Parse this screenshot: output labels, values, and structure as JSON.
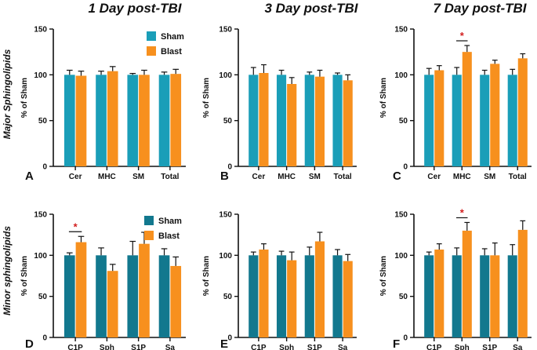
{
  "figure": {
    "column_titles": [
      "1 Day post-TBI",
      "3 Day post-TBI",
      "7 Day post-TBI"
    ],
    "row_titles": [
      "Major Sphingolipids",
      "Minor sphingolipids"
    ],
    "colors": {
      "sham_major": "#1a9eb8",
      "sham_minor": "#12788e",
      "blast": "#f7901e",
      "star": "#d21f1f",
      "axis": "#111111"
    }
  },
  "chart_data": [
    {
      "panel": "A",
      "type": "bar",
      "title": "",
      "ylabel": "% of Sham",
      "ylim": [
        0,
        150
      ],
      "yticks": [
        0,
        50,
        100,
        150
      ],
      "categories": [
        "Cer",
        "MHC",
        "SM",
        "Total"
      ],
      "series": [
        {
          "name": "Sham",
          "values": [
            100,
            100,
            100,
            100
          ],
          "errors": [
            5,
            4,
            1.5,
            3
          ]
        },
        {
          "name": "Blast",
          "values": [
            99,
            104,
            100,
            101
          ],
          "errors": [
            5,
            5,
            5,
            5
          ]
        }
      ],
      "legend": [
        "Sham",
        "Blast"
      ],
      "legend_position": "top-right",
      "significance": []
    },
    {
      "panel": "B",
      "type": "bar",
      "title": "",
      "ylabel": "% of Sham",
      "ylim": [
        0,
        150
      ],
      "yticks": [
        0,
        50,
        100,
        150
      ],
      "categories": [
        "Cer",
        "MHC",
        "SM",
        "Total"
      ],
      "series": [
        {
          "name": "Sham",
          "values": [
            100,
            100,
            100,
            100
          ],
          "errors": [
            8,
            5,
            3,
            2
          ]
        },
        {
          "name": "Blast",
          "values": [
            102,
            90,
            98,
            94
          ],
          "errors": [
            9,
            7,
            7,
            6
          ]
        }
      ],
      "legend": [],
      "significance": []
    },
    {
      "panel": "C",
      "type": "bar",
      "title": "",
      "ylabel": "% of Sham",
      "ylim": [
        0,
        150
      ],
      "yticks": [
        0,
        50,
        100,
        150
      ],
      "categories": [
        "Cer",
        "MHC",
        "SM",
        "Total"
      ],
      "series": [
        {
          "name": "Sham",
          "values": [
            100,
            100,
            100,
            100
          ],
          "errors": [
            7,
            8,
            5,
            6
          ]
        },
        {
          "name": "Blast",
          "values": [
            105,
            125,
            112,
            118
          ],
          "errors": [
            5,
            7,
            4,
            5
          ]
        }
      ],
      "legend": [],
      "significance": [
        {
          "category": "MHC",
          "label": "*"
        }
      ]
    },
    {
      "panel": "D",
      "type": "bar",
      "title": "",
      "ylabel": "% of Sham",
      "ylim": [
        0,
        150
      ],
      "yticks": [
        0,
        50,
        100,
        150
      ],
      "categories": [
        "C1P",
        "Sph",
        "S1P",
        "Sa"
      ],
      "series": [
        {
          "name": "Sham",
          "values": [
            100,
            100,
            100,
            100
          ],
          "errors": [
            3,
            9,
            17,
            8
          ]
        },
        {
          "name": "Blast",
          "values": [
            116,
            81,
            114,
            87
          ],
          "errors": [
            7,
            8,
            14,
            11
          ]
        }
      ],
      "legend": [
        "Sham",
        "Blast"
      ],
      "legend_position": "top-right",
      "significance": [
        {
          "category": "C1P",
          "label": "*"
        }
      ]
    },
    {
      "panel": "E",
      "type": "bar",
      "title": "",
      "ylabel": "% of Sham",
      "ylim": [
        0,
        150
      ],
      "yticks": [
        0,
        50,
        100,
        150
      ],
      "categories": [
        "C1P",
        "Sph",
        "S1P",
        "Sa"
      ],
      "series": [
        {
          "name": "Sham",
          "values": [
            100,
            100,
            100,
            100
          ],
          "errors": [
            4,
            5,
            10,
            7
          ]
        },
        {
          "name": "Blast",
          "values": [
            107,
            94,
            117,
            93
          ],
          "errors": [
            7,
            10,
            11,
            8
          ]
        }
      ],
      "legend": [],
      "significance": []
    },
    {
      "panel": "F",
      "type": "bar",
      "title": "",
      "ylabel": "% of Sham",
      "ylim": [
        0,
        150
      ],
      "yticks": [
        0,
        50,
        100,
        150
      ],
      "categories": [
        "C1P",
        "Sph",
        "S1P",
        "Sa"
      ],
      "series": [
        {
          "name": "Sham",
          "values": [
            100,
            100,
            100,
            100
          ],
          "errors": [
            4,
            9,
            8,
            13
          ]
        },
        {
          "name": "Blast",
          "values": [
            107,
            130,
            100,
            131
          ],
          "errors": [
            7,
            10,
            15,
            11
          ]
        }
      ],
      "legend": [],
      "significance": [
        {
          "category": "Sph",
          "label": "*"
        }
      ]
    }
  ]
}
